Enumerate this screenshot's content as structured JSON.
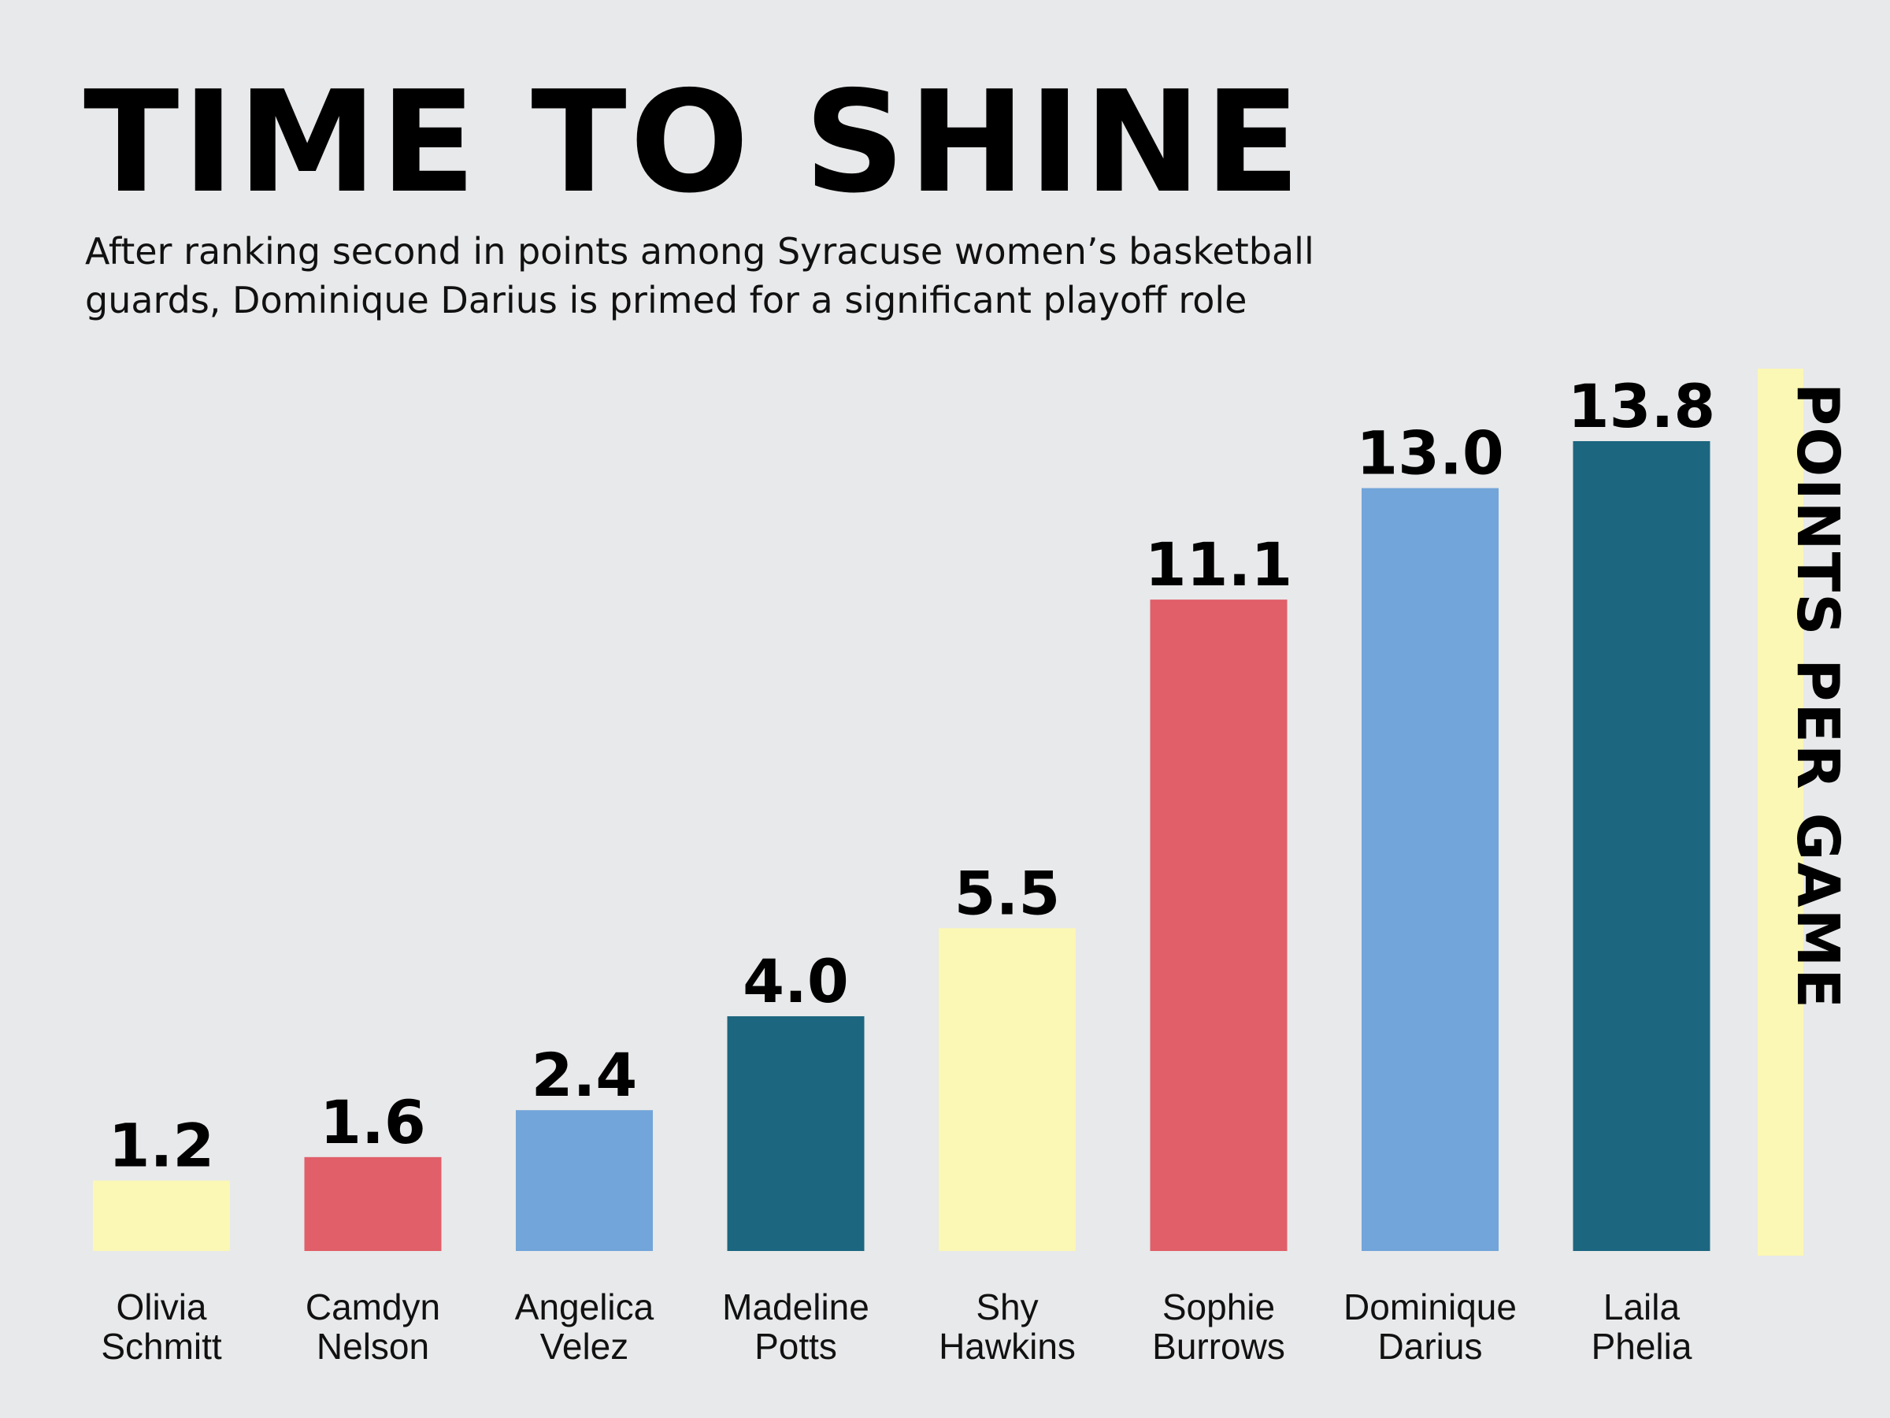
{
  "chart_data": {
    "type": "bar",
    "title": "TIME TO SHINE",
    "subtitle": "After ranking second in points among Syracuse women’s basketball guards, Dominique Darius is primed for a significant playoff role",
    "xlabel": "",
    "ylabel": "POINTS PER GAME",
    "categories": [
      "Olivia Schmitt",
      "Camdyn Nelson",
      "Angelica Velez",
      "Madeline Potts",
      "Shy Hawkins",
      "Sophie Burrows",
      "Dominique Darius",
      "Laila Phelia"
    ],
    "category_lines": [
      [
        "Olivia",
        "Schmitt"
      ],
      [
        "Camdyn",
        "Nelson"
      ],
      [
        "Angelica",
        "Velez"
      ],
      [
        "Madeline",
        "Potts"
      ],
      [
        "Shy",
        "Hawkins"
      ],
      [
        "Sophie",
        "Burrows"
      ],
      [
        "Dominique",
        "Darius"
      ],
      [
        "Laila",
        "Phelia"
      ]
    ],
    "values": [
      1.2,
      1.6,
      2.4,
      4.0,
      5.5,
      11.1,
      13.0,
      13.8
    ],
    "value_labels": [
      "1.2",
      "1.6",
      "2.4",
      "4.0",
      "5.5",
      "11.1",
      "13.0",
      "13.8"
    ],
    "colors": [
      "#fbf7b5",
      "#e05f69",
      "#72a5d9",
      "#1c6680",
      "#fbf7b5",
      "#e05f69",
      "#72a5d9",
      "#1c6680"
    ],
    "ylim": [
      0,
      13.8
    ],
    "grid": false,
    "legend": "none"
  }
}
